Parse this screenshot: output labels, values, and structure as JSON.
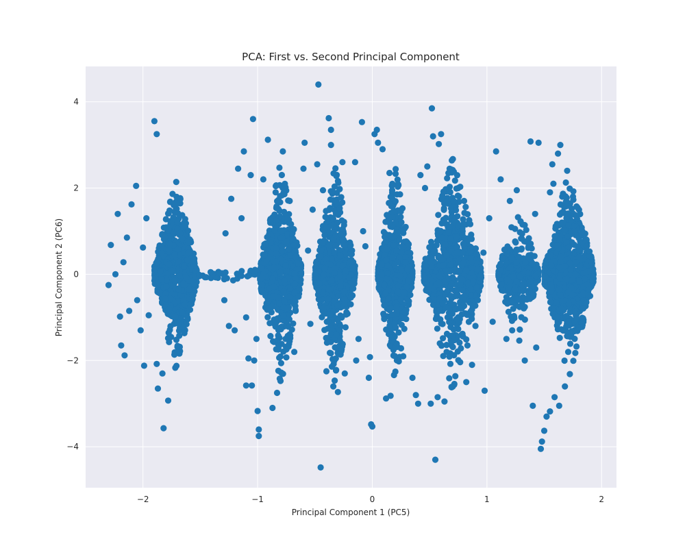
{
  "chart_data": {
    "type": "scatter",
    "title": "PCA: First vs. Second Principal Component",
    "xlabel": "Principal Component 1 (PC5)",
    "ylabel": "Principal Component 2 (PC6)",
    "xlim": [
      -2.5,
      2.13
    ],
    "ylim": [
      -4.95,
      4.82
    ],
    "x_ticks": [
      -2,
      -1,
      0,
      1,
      2
    ],
    "x_tick_labels": [
      "−2",
      "−1",
      "0",
      "1",
      "2"
    ],
    "y_ticks": [
      -4,
      -2,
      0,
      2,
      4
    ],
    "y_tick_labels": [
      "−4",
      "−2",
      "0",
      "2",
      "4"
    ],
    "grid": true,
    "legend": "none",
    "marker_color": "#1f77b4",
    "background_color": "#eaeaf2",
    "clusters": [
      {
        "x_min": -1.9,
        "x_max": -1.53,
        "y_spread_max": 2.2,
        "density": "high"
      },
      {
        "x_min": -0.98,
        "x_max": -0.62,
        "y_spread_max": 2.6,
        "density": "high"
      },
      {
        "x_min": -0.5,
        "x_max": -0.15,
        "y_spread_max": 2.5,
        "density": "high"
      },
      {
        "x_min": 0.05,
        "x_max": 0.35,
        "y_spread_max": 2.5,
        "density": "high"
      },
      {
        "x_min": 0.45,
        "x_max": 0.95,
        "y_spread_max": 2.7,
        "density": "high"
      },
      {
        "x_min": 1.1,
        "x_max": 1.45,
        "y_spread_max": 1.6,
        "density": "medium"
      },
      {
        "x_min": 1.5,
        "x_max": 1.93,
        "y_spread_max": 2.4,
        "density": "high"
      }
    ],
    "points": [
      [
        -2.3,
        -0.25
      ],
      [
        -2.28,
        0.68
      ],
      [
        -2.24,
        0.0
      ],
      [
        -2.22,
        1.4
      ],
      [
        -2.2,
        -0.98
      ],
      [
        -2.19,
        -1.65
      ],
      [
        -2.17,
        0.28
      ],
      [
        -2.16,
        -1.88
      ],
      [
        -2.14,
        0.85
      ],
      [
        -2.12,
        -0.85
      ],
      [
        -2.1,
        1.62
      ],
      [
        -2.06,
        2.05
      ],
      [
        -2.05,
        -0.6
      ],
      [
        -2.02,
        -1.3
      ],
      [
        -2.0,
        0.62
      ],
      [
        -1.99,
        -2.12
      ],
      [
        -1.97,
        1.3
      ],
      [
        -1.95,
        -0.95
      ],
      [
        -1.9,
        3.55
      ],
      [
        -1.88,
        3.25
      ],
      [
        -1.88,
        -2.08
      ],
      [
        -1.87,
        -2.65
      ],
      [
        -1.82,
        -3.57
      ],
      [
        -1.78,
        -2.93
      ],
      [
        -1.83,
        -2.3
      ],
      [
        -1.41,
        0.05
      ],
      [
        -1.33,
        0.03
      ],
      [
        -1.29,
        -0.6
      ],
      [
        -1.28,
        0.95
      ],
      [
        -1.25,
        -1.2
      ],
      [
        -1.23,
        1.75
      ],
      [
        -1.2,
        -1.3
      ],
      [
        -1.17,
        2.45
      ],
      [
        -1.14,
        1.3
      ],
      [
        -1.12,
        2.85
      ],
      [
        -1.1,
        -1.0
      ],
      [
        -1.06,
        2.3
      ],
      [
        -1.04,
        3.6
      ],
      [
        -1.03,
        -2.0
      ],
      [
        -1.01,
        -1.5
      ],
      [
        -1.08,
        -1.95
      ],
      [
        -1.1,
        -2.58
      ],
      [
        -1.05,
        -2.58
      ],
      [
        -1.0,
        -3.17
      ],
      [
        -0.99,
        -3.6
      ],
      [
        -0.99,
        -3.75
      ],
      [
        -0.95,
        2.2
      ],
      [
        -0.91,
        3.12
      ],
      [
        -0.87,
        -3.1
      ],
      [
        -0.83,
        -2.75
      ],
      [
        -0.78,
        2.85
      ],
      [
        -0.72,
        1.7
      ],
      [
        -0.68,
        -1.8
      ],
      [
        -0.6,
        2.45
      ],
      [
        -0.59,
        3.05
      ],
      [
        -0.56,
        0.55
      ],
      [
        -0.54,
        -1.15
      ],
      [
        -0.52,
        1.5
      ],
      [
        -0.48,
        2.55
      ],
      [
        -0.47,
        4.4
      ],
      [
        -0.45,
        -4.48
      ],
      [
        -0.43,
        1.95
      ],
      [
        -0.4,
        -2.25
      ],
      [
        -0.38,
        3.62
      ],
      [
        -0.36,
        3.35
      ],
      [
        -0.36,
        3.0
      ],
      [
        -0.34,
        -2.6
      ],
      [
        -0.3,
        -2.73
      ],
      [
        -0.26,
        2.6
      ],
      [
        -0.24,
        -2.3
      ],
      [
        -0.15,
        2.6
      ],
      [
        -0.14,
        -2.0
      ],
      [
        -0.12,
        -1.5
      ],
      [
        -0.09,
        3.53
      ],
      [
        -0.08,
        1.0
      ],
      [
        -0.06,
        0.65
      ],
      [
        -0.03,
        -2.4
      ],
      [
        -0.02,
        -1.92
      ],
      [
        -0.01,
        -3.48
      ],
      [
        0.0,
        -3.53
      ],
      [
        0.02,
        3.25
      ],
      [
        0.04,
        3.35
      ],
      [
        0.05,
        3.05
      ],
      [
        0.09,
        2.9
      ],
      [
        0.12,
        -2.88
      ],
      [
        0.15,
        2.35
      ],
      [
        0.16,
        -2.82
      ],
      [
        0.27,
        -1.9
      ],
      [
        0.35,
        -2.4
      ],
      [
        0.38,
        -2.8
      ],
      [
        0.4,
        -3.0
      ],
      [
        0.42,
        2.3
      ],
      [
        0.46,
        2.0
      ],
      [
        0.48,
        2.5
      ],
      [
        0.51,
        -3.0
      ],
      [
        0.52,
        3.85
      ],
      [
        0.53,
        3.2
      ],
      [
        0.55,
        -4.3
      ],
      [
        0.57,
        -2.85
      ],
      [
        0.58,
        3.02
      ],
      [
        0.6,
        3.25
      ],
      [
        0.63,
        -2.95
      ],
      [
        0.75,
        2.0
      ],
      [
        0.82,
        -2.5
      ],
      [
        0.83,
        -1.65
      ],
      [
        0.87,
        -2.1
      ],
      [
        0.9,
        -1.2
      ],
      [
        0.92,
        -0.6
      ],
      [
        0.97,
        0.5
      ],
      [
        0.98,
        -2.7
      ],
      [
        1.02,
        1.3
      ],
      [
        1.05,
        -1.1
      ],
      [
        1.08,
        2.85
      ],
      [
        1.12,
        2.2
      ],
      [
        1.17,
        -1.5
      ],
      [
        1.2,
        1.7
      ],
      [
        1.22,
        -1.3
      ],
      [
        1.26,
        1.95
      ],
      [
        1.3,
        -0.75
      ],
      [
        1.33,
        -2.0
      ],
      [
        1.36,
        0.4
      ],
      [
        1.38,
        3.08
      ],
      [
        1.4,
        -3.05
      ],
      [
        1.42,
        1.4
      ],
      [
        1.43,
        -1.7
      ],
      [
        1.45,
        3.05
      ],
      [
        1.47,
        -4.05
      ],
      [
        1.48,
        -3.88
      ],
      [
        1.5,
        -3.63
      ],
      [
        1.52,
        -3.3
      ],
      [
        1.55,
        -3.18
      ],
      [
        1.59,
        -2.85
      ],
      [
        1.63,
        -3.05
      ],
      [
        1.62,
        2.8
      ],
      [
        1.64,
        3.0
      ],
      [
        1.57,
        2.55
      ],
      [
        1.55,
        1.9
      ],
      [
        1.58,
        2.1
      ],
      [
        1.68,
        -2.6
      ],
      [
        1.7,
        2.4
      ]
    ]
  }
}
